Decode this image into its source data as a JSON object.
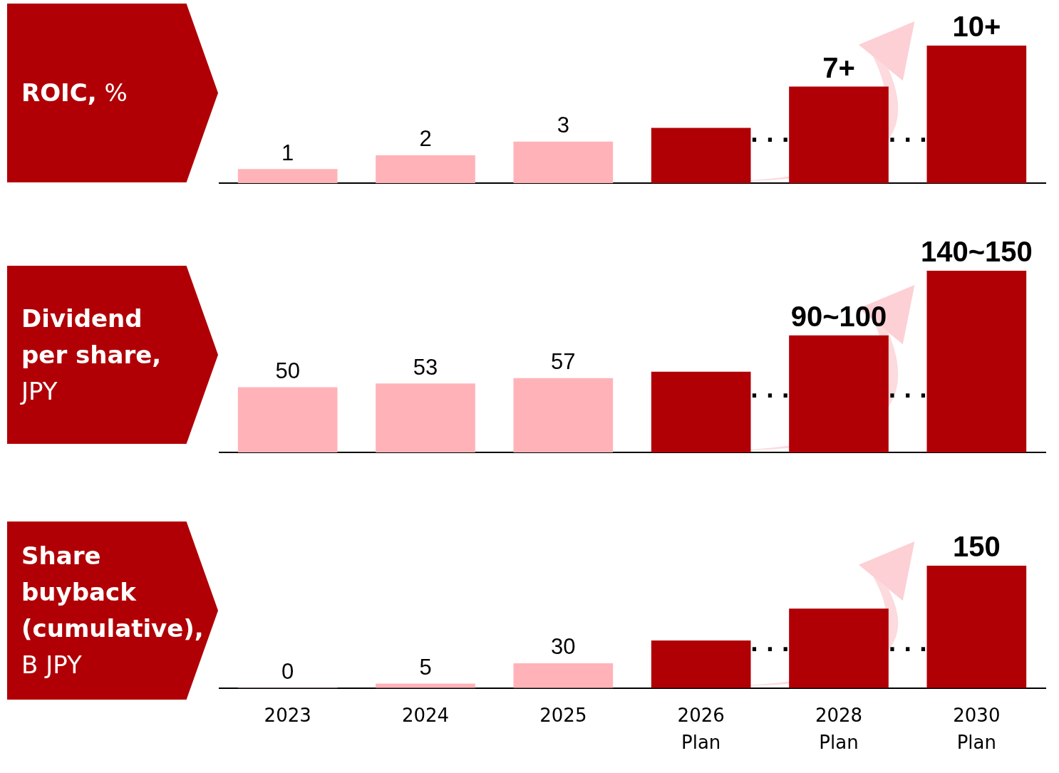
{
  "chart_data": [
    {
      "type": "bar",
      "title": "ROIC, %",
      "tick_labels": false,
      "categories": [
        null,
        null,
        null,
        null,
        null,
        null
      ],
      "values": [
        1,
        2,
        3,
        4,
        7,
        10
      ],
      "colors": [
        "#ffb3b8",
        "#ffb3b8",
        "#ffb3b8",
        "#b00006",
        "#b00006",
        "#b00006"
      ],
      "value_labels": [
        "1",
        "2",
        "3",
        null,
        "7+",
        "10+"
      ],
      "annotations": [
        "· · ·",
        "· · ·"
      ]
    },
    {
      "type": "bar",
      "title": "Dividend per share, JPY",
      "tick_labels": false,
      "categories": [
        null,
        null,
        null,
        null,
        null,
        null
      ],
      "values": [
        50,
        53,
        57,
        62,
        90,
        140
      ],
      "colors": [
        "#ffb3b8",
        "#ffb3b8",
        "#ffb3b8",
        "#b00006",
        "#b00006",
        "#b00006"
      ],
      "value_labels": [
        "50",
        "53",
        "57",
        null,
        "90~100",
        "140~150"
      ],
      "annotations": [
        "· · ·",
        "· · ·"
      ]
    },
    {
      "type": "bar",
      "title": "Share buyback (cumulative), B JPY",
      "tick_labels": "x",
      "categories": [
        "2023",
        "2024",
        "2025",
        "2026 Plan",
        "2028 Plan",
        "2030 Plan"
      ],
      "values": [
        0,
        5,
        30,
        58,
        97,
        150
      ],
      "colors": [
        "#ffb3b8",
        "#ffb3b8",
        "#ffb3b8",
        "#b00006",
        "#b00006",
        "#b00006"
      ],
      "value_labels": [
        "0",
        "5",
        "30",
        null,
        null,
        "150"
      ],
      "annotations": [
        "· · ·",
        "· · ·"
      ]
    }
  ]
}
